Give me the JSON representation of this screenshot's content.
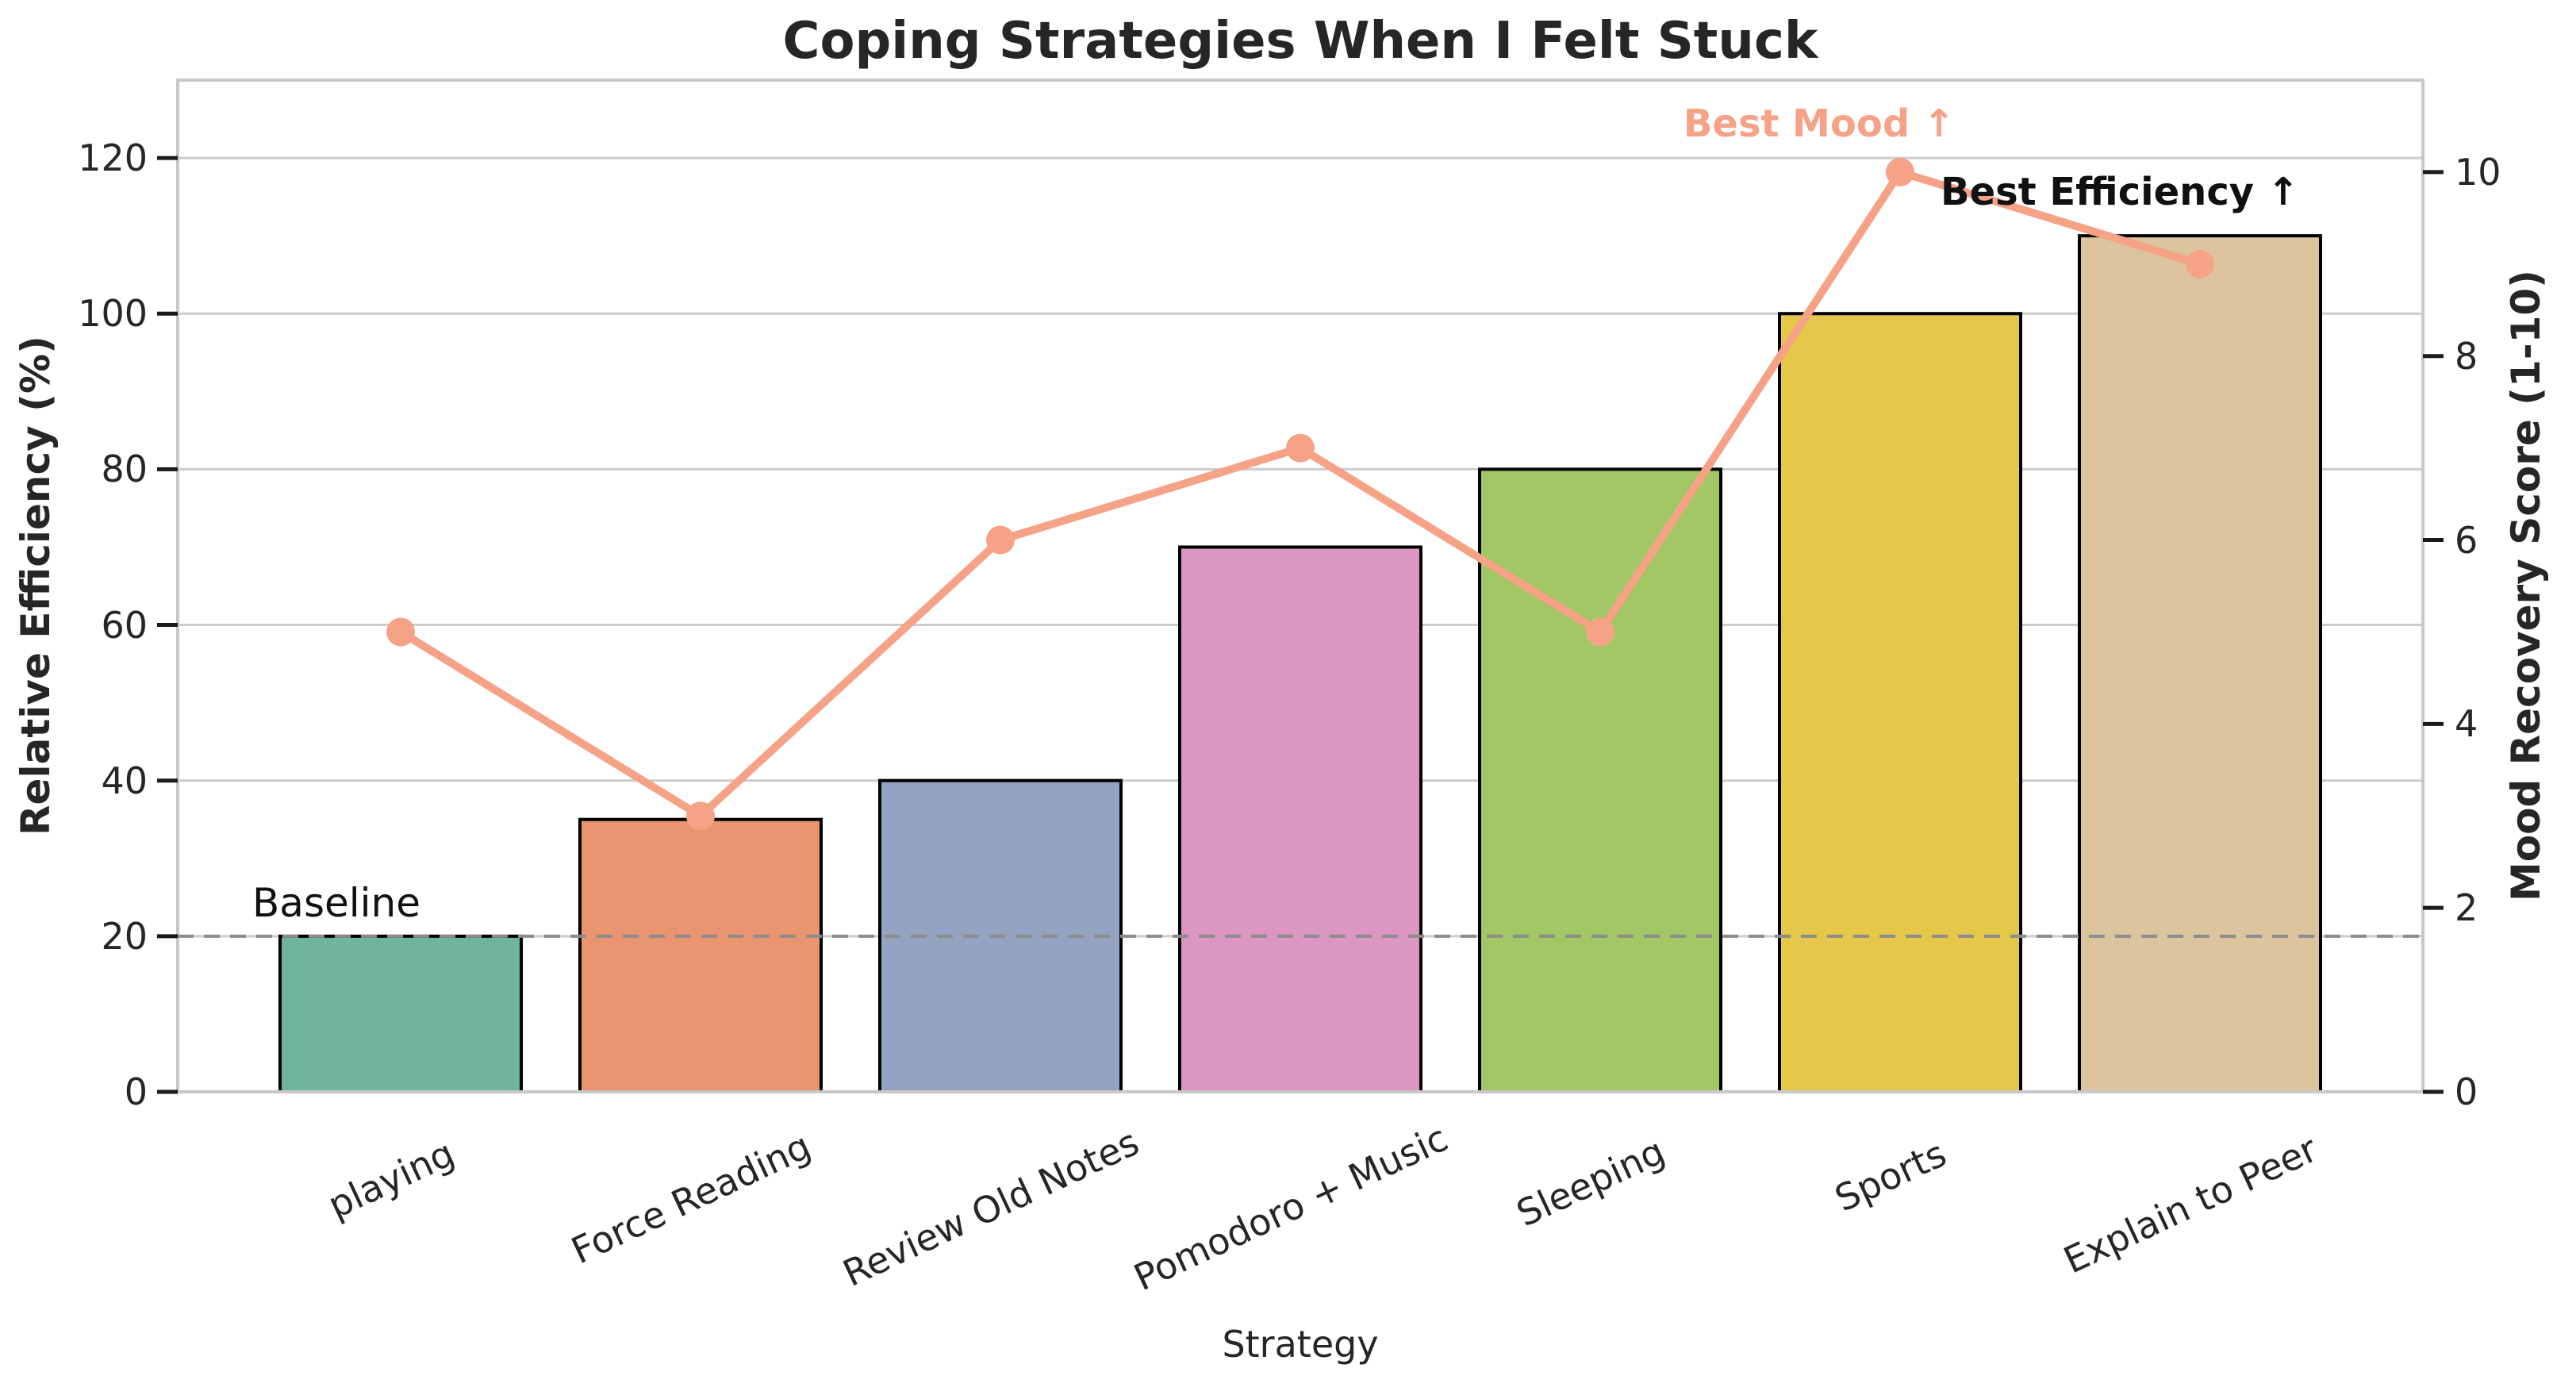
{
  "chart_data": {
    "type": "bar",
    "title": "Coping Strategies When I Felt Stuck",
    "xlabel": "Strategy",
    "ylabel_left": "Relative Efficiency (%)",
    "ylabel_right": "Mood Recovery Score (1-10)",
    "categories": [
      "playing",
      "Force Reading",
      "Review Old Notes",
      "Pomodoro + Music",
      "Sleeping",
      "Sports",
      "Explain to Peer"
    ],
    "series": [
      {
        "name": "Relative Efficiency (%)",
        "type": "bar",
        "axis": "left",
        "values": [
          20,
          35,
          40,
          70,
          80,
          100,
          110
        ]
      },
      {
        "name": "Mood Recovery Score (1-10)",
        "type": "line",
        "axis": "right",
        "values": [
          5,
          3,
          6,
          7,
          5,
          10,
          9
        ]
      }
    ],
    "bar_colors": [
      "#6fb49d",
      "#e9956f",
      "#95a3c3",
      "#db96c1",
      "#a2c764",
      "#e5c849",
      "#dcc49e"
    ],
    "bar_edge_color": "#000000",
    "line_color": "#f5a287",
    "left_axis": {
      "ticks": [
        0,
        20,
        40,
        60,
        80,
        100,
        120
      ],
      "range": [
        0,
        130
      ]
    },
    "right_axis": {
      "ticks": [
        0,
        2,
        4,
        6,
        8,
        10
      ],
      "range": [
        0,
        11
      ]
    },
    "baseline": {
      "value": 20,
      "label": "Baseline",
      "line_color": "#8c8c8c"
    },
    "annotations": [
      {
        "id": "best_mood",
        "text": "Best Mood ↑",
        "anchor_category": "Sports",
        "color": "#f5a287"
      },
      {
        "id": "best_efficiency",
        "text": "Best Efficiency ↑",
        "anchor_category": "Explain to Peer",
        "color": "#111111"
      }
    ],
    "grid": true,
    "legend": "none",
    "x_tick_rotation_deg": 25,
    "colors": {
      "grid": "#cccccc",
      "spine": "#c8c8c8",
      "tick_mark": "#1a1a1a",
      "text": "#262626"
    }
  }
}
